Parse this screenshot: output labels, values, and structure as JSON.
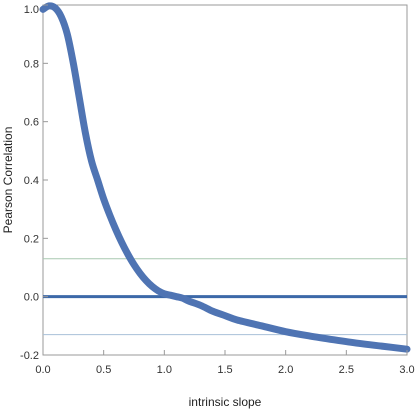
{
  "chart_data": {
    "type": "line",
    "xlabel": "intrinsic slope",
    "ylabel": "Pearson Correlation",
    "xlim": [
      0.0,
      3.0
    ],
    "ylim": [
      -0.2,
      1.0
    ],
    "x_ticks": [
      "0.0",
      "0.5",
      "1.0",
      "1.5",
      "2.0",
      "2.5",
      "3.0"
    ],
    "y_ticks": [
      "-0.2",
      "0.0",
      "0.2",
      "0.4",
      "0.6",
      "0.8",
      "1.0"
    ],
    "series": [
      {
        "x": [
          0.0,
          0.05,
          0.1,
          0.15,
          0.2,
          0.25,
          0.3,
          0.35,
          0.4,
          0.45,
          0.5,
          0.55,
          0.6,
          0.65,
          0.7,
          0.75,
          0.8,
          0.85,
          0.9,
          0.95,
          1.0,
          1.05,
          1.1,
          1.15,
          1.2,
          1.3,
          1.4,
          1.5,
          1.6,
          1.8,
          2.0,
          2.2,
          2.4,
          2.6,
          2.8,
          3.0
        ],
        "y": [
          0.985,
          0.997,
          0.99,
          0.96,
          0.9,
          0.8,
          0.68,
          0.56,
          0.465,
          0.4,
          0.335,
          0.28,
          0.23,
          0.185,
          0.145,
          0.11,
          0.08,
          0.055,
          0.035,
          0.02,
          0.01,
          0.005,
          0.0,
          -0.005,
          -0.015,
          -0.03,
          -0.05,
          -0.065,
          -0.08,
          -0.1,
          -0.12,
          -0.135,
          -0.148,
          -0.16,
          -0.17,
          -0.18
        ],
        "color": "#4f74b3"
      }
    ],
    "reference_lines": [
      {
        "y": 0.0,
        "color": "#3c68a8"
      },
      {
        "y": 0.13,
        "color": "#a8c8b0"
      },
      {
        "y": -0.13,
        "color": "#a8c0d8"
      }
    ],
    "grid": false,
    "frame_color": "#999999"
  }
}
